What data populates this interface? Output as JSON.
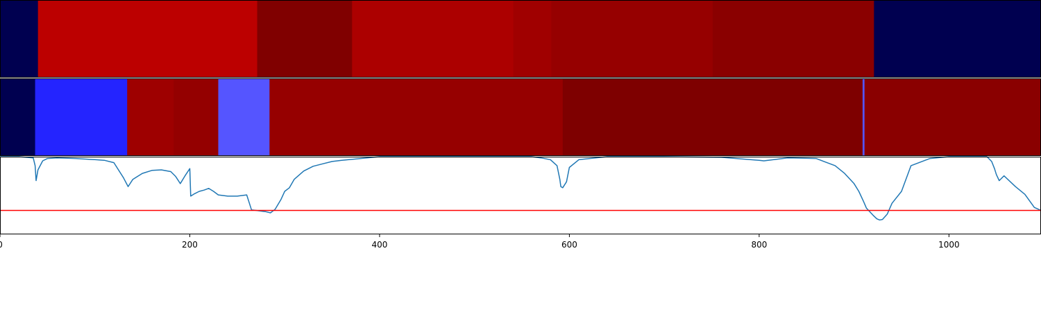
{
  "chart_data": [
    {
      "type": "heatmap",
      "xlim": [
        0,
        1097
      ],
      "segments": [
        {
          "x0": 0,
          "x1": 40,
          "color": "#000050"
        },
        {
          "x0": 40,
          "x1": 271,
          "color": "#bc0000"
        },
        {
          "x0": 271,
          "x1": 371,
          "color": "#800000"
        },
        {
          "x0": 371,
          "x1": 541,
          "color": "#ac0000"
        },
        {
          "x0": 541,
          "x1": 581,
          "color": "#a00000"
        },
        {
          "x0": 581,
          "x1": 751,
          "color": "#960000"
        },
        {
          "x0": 751,
          "x1": 921,
          "color": "#8a0000"
        },
        {
          "x0": 921,
          "x1": 1097,
          "color": "#000050"
        }
      ]
    },
    {
      "type": "heatmap",
      "xlim": [
        0,
        1097
      ],
      "segments": [
        {
          "x0": 0,
          "x1": 37,
          "color": "#000050"
        },
        {
          "x0": 37,
          "x1": 134,
          "color": "#2424ff"
        },
        {
          "x0": 134,
          "x1": 183,
          "color": "#9e0000"
        },
        {
          "x0": 183,
          "x1": 230,
          "color": "#940000"
        },
        {
          "x0": 230,
          "x1": 284,
          "color": "#5555ff"
        },
        {
          "x0": 284,
          "x1": 593,
          "color": "#960000"
        },
        {
          "x0": 593,
          "x1": 909,
          "color": "#7e0000"
        },
        {
          "x0": 909,
          "x1": 911,
          "color": "#5555ff"
        },
        {
          "x0": 911,
          "x1": 1097,
          "color": "#8a0000"
        }
      ]
    },
    {
      "type": "line",
      "xlim": [
        0,
        1097
      ],
      "ylim": [
        -0.3,
        1.0
      ],
      "xticks": [
        0,
        200,
        400,
        600,
        800,
        1000
      ],
      "threshold": {
        "y": 0.1,
        "color": "#ff0000"
      },
      "series": [
        {
          "color": "#1f77b4",
          "x": [
            0,
            20,
            35,
            37,
            38,
            40,
            45,
            50,
            60,
            80,
            100,
            110,
            120,
            130,
            135,
            140,
            150,
            160,
            170,
            180,
            185,
            190,
            195,
            200,
            201,
            205,
            210,
            215,
            220,
            225,
            230,
            235,
            240,
            250,
            260,
            265,
            270,
            280,
            285,
            290,
            296,
            300,
            305,
            310,
            320,
            330,
            340,
            350,
            360,
            380,
            400,
            420,
            440,
            500,
            560,
            570,
            580,
            587,
            590,
            591,
            593,
            597,
            600,
            610,
            640,
            700,
            760,
            800,
            805,
            830,
            860,
            870,
            880,
            890,
            900,
            905,
            910,
            913,
            920,
            924,
            927,
            930,
            935,
            940,
            950,
            960,
            980,
            1000,
            1030,
            1040,
            1045,
            1048,
            1050,
            1053,
            1058,
            1070,
            1080,
            1090,
            1097
          ],
          "y": [
            1.0,
            1.0,
            0.98,
            0.85,
            0.6,
            0.78,
            0.93,
            0.97,
            0.98,
            0.97,
            0.95,
            0.94,
            0.9,
            0.65,
            0.5,
            0.62,
            0.72,
            0.77,
            0.78,
            0.75,
            0.67,
            0.55,
            0.68,
            0.8,
            0.34,
            0.38,
            0.42,
            0.44,
            0.47,
            0.42,
            0.36,
            0.35,
            0.34,
            0.34,
            0.36,
            0.11,
            0.1,
            0.08,
            0.06,
            0.12,
            0.28,
            0.42,
            0.48,
            0.62,
            0.76,
            0.84,
            0.88,
            0.92,
            0.94,
            0.97,
            1.0,
            1.0,
            1.0,
            1.0,
            1.0,
            0.98,
            0.95,
            0.85,
            0.62,
            0.5,
            0.48,
            0.58,
            0.82,
            0.95,
            1.0,
            1.0,
            0.99,
            0.94,
            0.93,
            0.98,
            0.97,
            0.91,
            0.85,
            0.72,
            0.55,
            0.42,
            0.25,
            0.14,
            0.02,
            -0.04,
            -0.06,
            -0.05,
            0.04,
            0.22,
            0.42,
            0.85,
            0.97,
            1.0,
            1.0,
            1.0,
            0.92,
            0.8,
            0.7,
            0.6,
            0.68,
            0.5,
            0.37,
            0.15,
            0.1
          ]
        }
      ]
    }
  ]
}
